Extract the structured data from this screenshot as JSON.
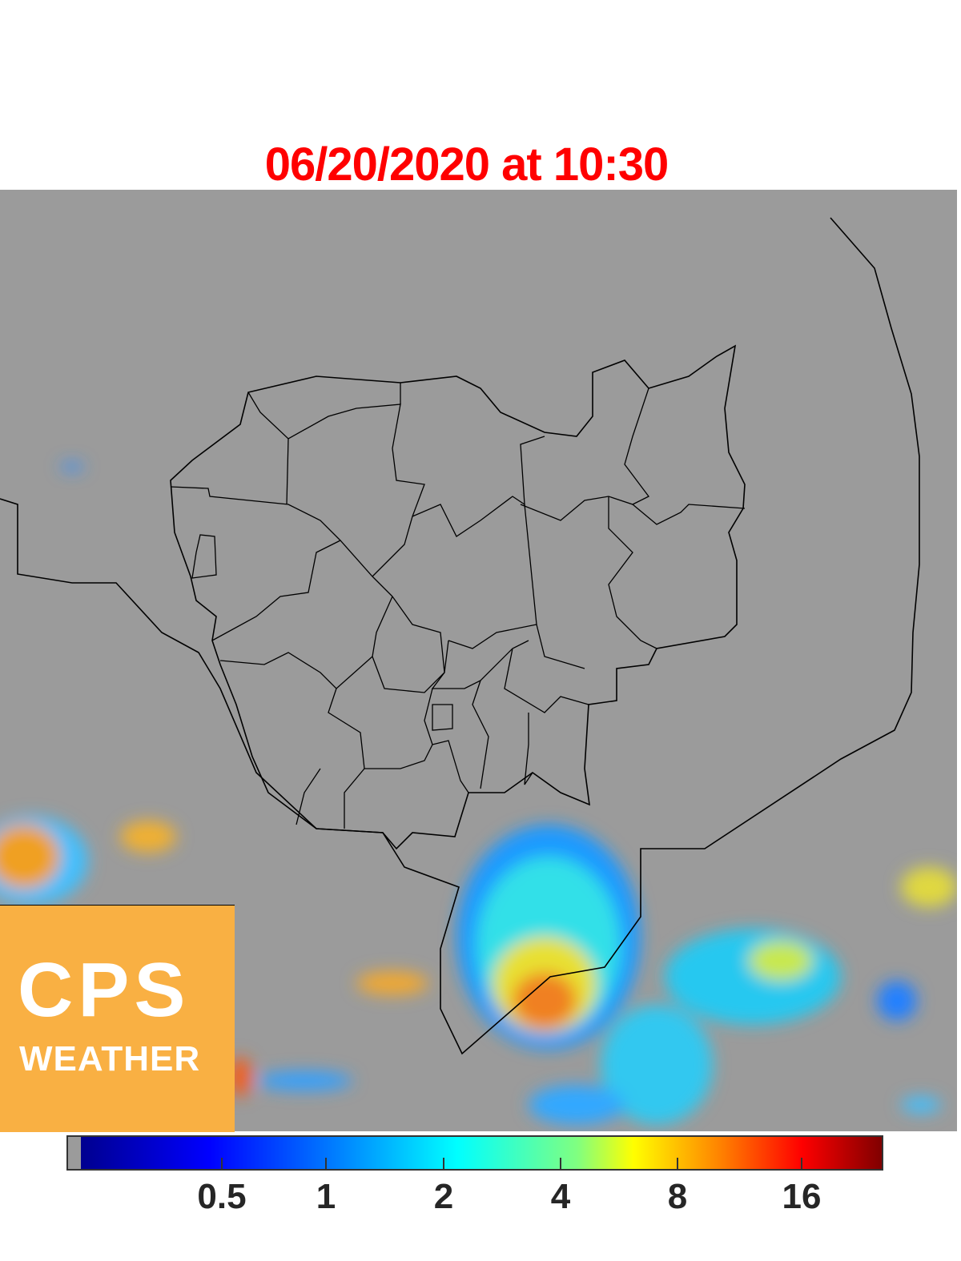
{
  "title": "06/20/2020 at 10:30",
  "logo": {
    "line1": "CPS",
    "line2": "WEATHER",
    "background": "#f9b043"
  },
  "map": {
    "background": "#9b9b9b",
    "border_color": "#000000"
  },
  "colorbar": {
    "colormap": "jet",
    "scale": "log",
    "tick_labels": [
      "0.5",
      "1",
      "2",
      "4",
      "8",
      "16"
    ]
  }
}
